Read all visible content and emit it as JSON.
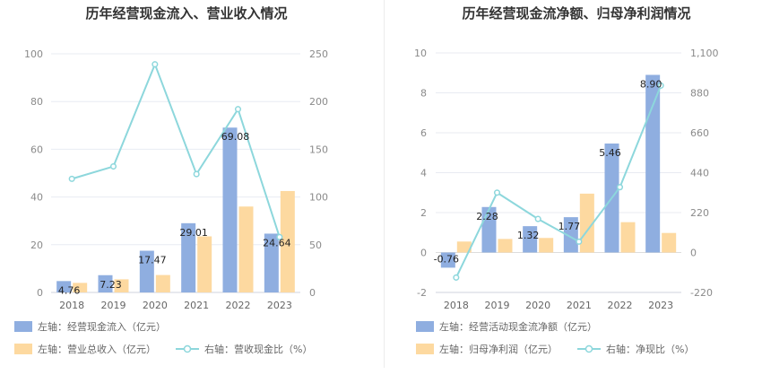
{
  "chart_data": [
    {
      "type": "bar",
      "title": "历年经营现金流入、营业收入情况",
      "categories": [
        "2018",
        "2019",
        "2020",
        "2021",
        "2022",
        "2023"
      ],
      "y_left": {
        "lim": [
          0,
          100
        ],
        "ticks": [
          "0",
          "20",
          "40",
          "60",
          "80",
          "100"
        ]
      },
      "y_right": {
        "lim": [
          0,
          250
        ],
        "ticks": [
          "0",
          "50",
          "100",
          "150",
          "200",
          "250"
        ]
      },
      "series": [
        {
          "name": "左轴：经营现金流入（亿元）",
          "type": "bar",
          "axis": "left",
          "color": "#8faee0",
          "values": [
            4.76,
            7.23,
            17.47,
            29.01,
            69.08,
            24.64
          ],
          "labels": [
            "4.76",
            "7.23",
            "17.47",
            "29.01",
            "69.08",
            "24.64"
          ]
        },
        {
          "name": "左轴：营业总收入（亿元）",
          "type": "bar",
          "axis": "left",
          "color": "#fdd9a0",
          "values": [
            4.0,
            5.5,
            7.3,
            23.5,
            36.0,
            42.5
          ]
        },
        {
          "name": "右轴：营收现金比（%）",
          "type": "line",
          "axis": "right",
          "color": "#8dd7dc",
          "values": [
            119,
            132,
            239,
            124,
            192,
            58
          ]
        }
      ]
    },
    {
      "type": "bar",
      "title": "历年经营现金流净额、归母净利润情况",
      "categories": [
        "2018",
        "2019",
        "2020",
        "2021",
        "2022",
        "2023"
      ],
      "y_left": {
        "lim": [
          -2,
          10
        ],
        "ticks": [
          "-2",
          "0",
          "2",
          "4",
          "6",
          "8",
          "10"
        ]
      },
      "y_right": {
        "lim": [
          -220,
          1100
        ],
        "ticks": [
          "-220",
          "0",
          "220",
          "440",
          "660",
          "880",
          "1,100"
        ]
      },
      "series": [
        {
          "name": "左轴：经营活动现金流净额（亿元）",
          "type": "bar",
          "axis": "left",
          "color": "#8faee0",
          "values": [
            -0.76,
            2.28,
            1.32,
            1.77,
            5.46,
            8.9
          ],
          "labels": [
            "-0.76",
            "2.28",
            "1.32",
            "1.77",
            "5.46",
            "8.90"
          ]
        },
        {
          "name": "左轴：归母净利润（亿元）",
          "type": "bar",
          "axis": "left",
          "color": "#fdd9a0",
          "values": [
            0.55,
            0.68,
            0.73,
            2.95,
            1.52,
            0.98
          ]
        },
        {
          "name": "右轴：净现比（%）",
          "type": "line",
          "axis": "right",
          "color": "#8dd7dc",
          "values": [
            -138,
            330,
            185,
            60,
            360,
            920
          ]
        }
      ]
    }
  ]
}
